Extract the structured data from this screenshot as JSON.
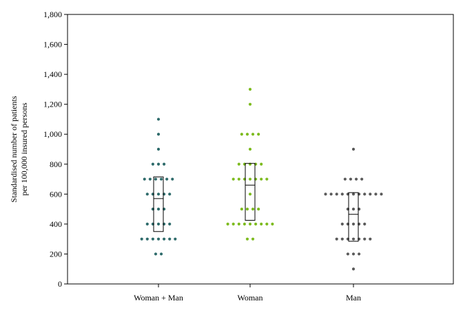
{
  "chart_data": {
    "type": "scatter",
    "subtype": "dot-strip-with-box",
    "title": "",
    "xlabel": "",
    "ylabel_lines": [
      "Standardised number of patients",
      "per 100,000 insured persons"
    ],
    "ylim": [
      0,
      1800
    ],
    "yticks": [
      0,
      200,
      400,
      600,
      800,
      1000,
      1200,
      1400,
      1600,
      1800
    ],
    "ytick_labels": [
      "0",
      "200",
      "400",
      "600",
      "800",
      "1,000",
      "1,200",
      "1,400",
      "1,600",
      "1,800"
    ],
    "categories": [
      "Woman + Man",
      "Woman",
      "Man"
    ],
    "grid": false,
    "legend": "none",
    "series": [
      {
        "category": "Woman + Man",
        "color": "#2e6b6b",
        "box": {
          "q1": 350,
          "median": 570,
          "q3": 715
        },
        "points": [
          [
            1100,
            1
          ],
          [
            1000,
            1
          ],
          [
            900,
            1
          ],
          [
            800,
            3
          ],
          [
            700,
            6
          ],
          [
            600,
            5
          ],
          [
            500,
            3
          ],
          [
            400,
            5
          ],
          [
            300,
            7
          ],
          [
            200,
            2
          ]
        ]
      },
      {
        "category": "Woman",
        "color": "#7dbb1f",
        "box": {
          "q1": 425,
          "median": 660,
          "q3": 805
        },
        "points": [
          [
            1300,
            1
          ],
          [
            1200,
            1
          ],
          [
            1000,
            4
          ],
          [
            900,
            1
          ],
          [
            800,
            5
          ],
          [
            700,
            7
          ],
          [
            600,
            1
          ],
          [
            500,
            4
          ],
          [
            400,
            9
          ],
          [
            300,
            2
          ]
        ]
      },
      {
        "category": "Man",
        "color": "#5a5a5a",
        "box": {
          "q1": 285,
          "median": 465,
          "q3": 610
        },
        "points": [
          [
            900,
            1
          ],
          [
            700,
            4
          ],
          [
            600,
            11
          ],
          [
            500,
            3
          ],
          [
            400,
            5
          ],
          [
            300,
            7
          ],
          [
            200,
            3
          ],
          [
            100,
            1
          ]
        ]
      }
    ]
  }
}
